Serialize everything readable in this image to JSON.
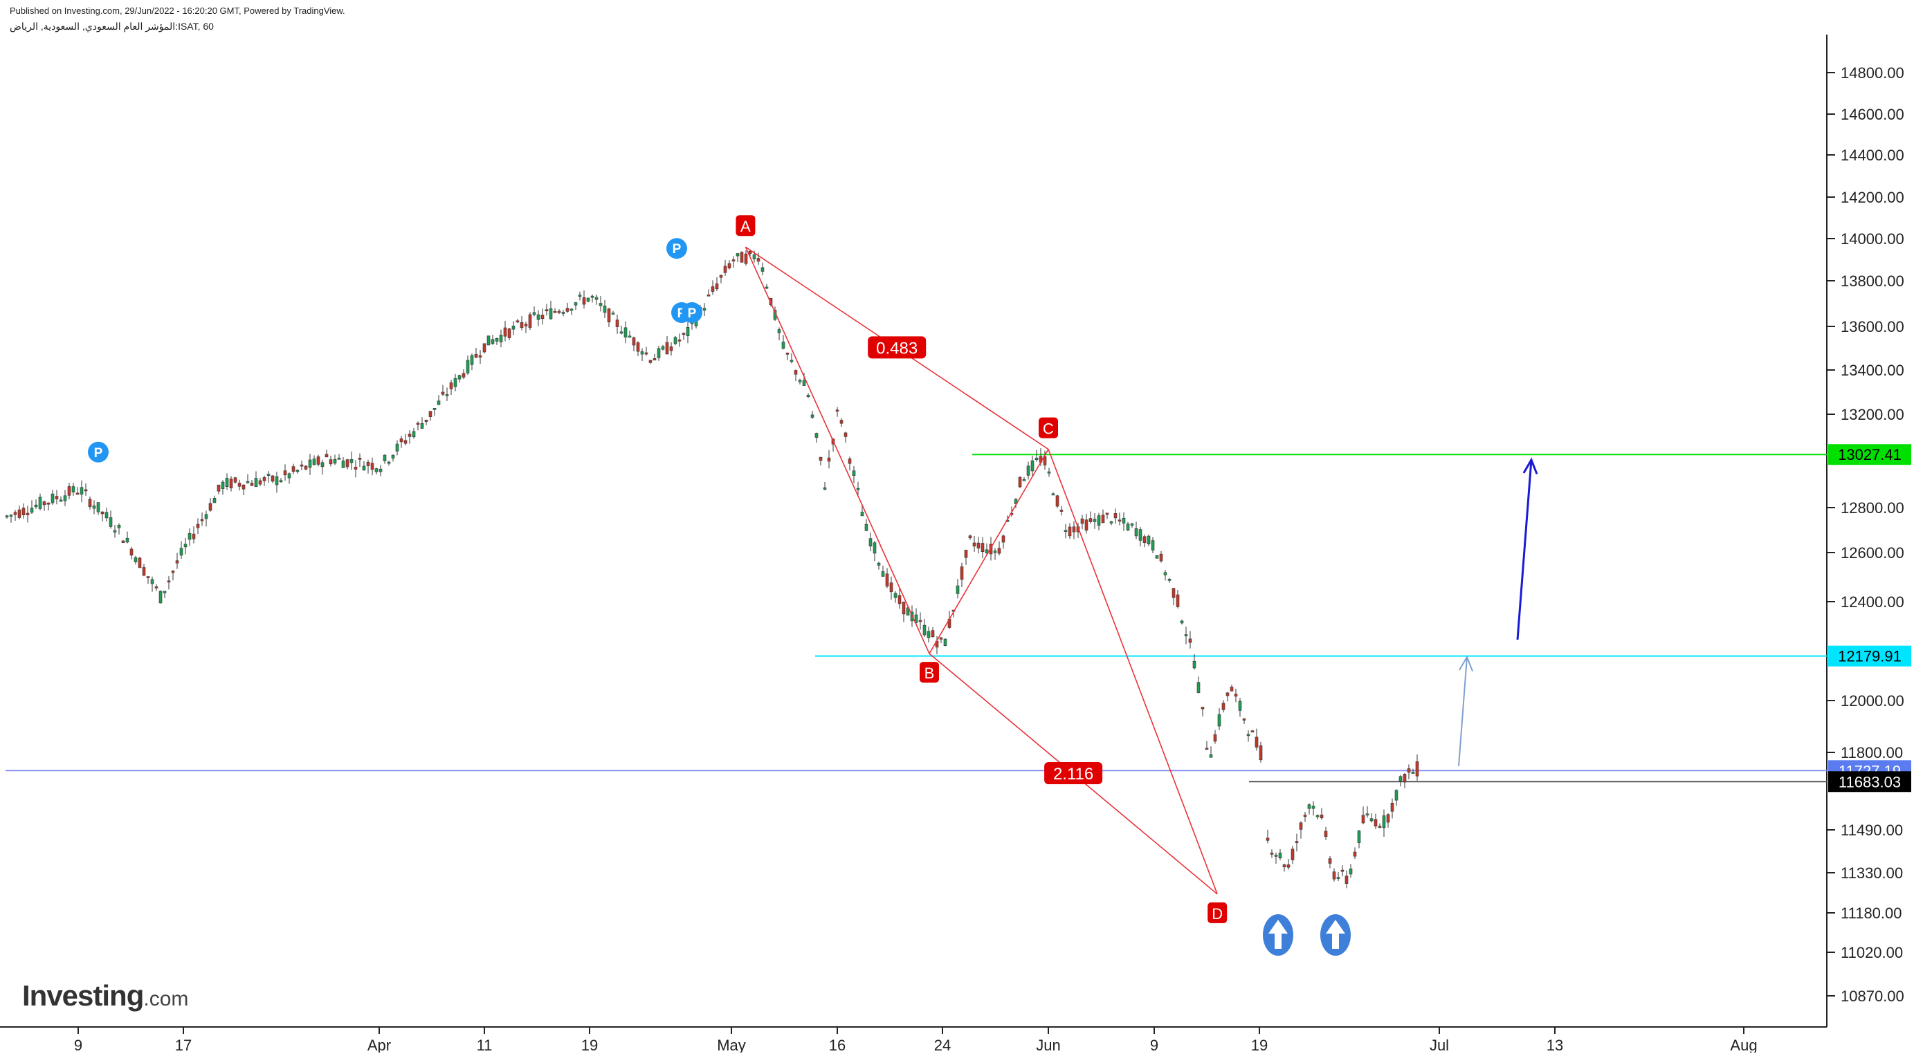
{
  "header": {
    "published": "Published on Investing.com, 29/Jun/2022 - 16:20:20 GMT, Powered by TradingView.",
    "symbol": "المؤشر العام السعودي, السعودية, الرياض:ISAT, 60"
  },
  "logo": {
    "brand": "Investing",
    "tld": ".com"
  },
  "colors": {
    "up": "#1f9d55",
    "down": "#c0392b",
    "pattern": "#e8343a",
    "pivot": "#2196f3",
    "green_line": "#00e000",
    "cyan_line": "#00e5ff",
    "blue_line": "#8a8ff5",
    "gray_line": "#555555",
    "arrow_dark": "#1a1ad6",
    "arrow_light": "#7f9fd0",
    "circle_arrow": "#3d7fd9"
  },
  "chart_data": {
    "type": "candlestick",
    "y_ticks": [
      "14800.00",
      "14600.00",
      "14400.00",
      "14200.00",
      "14000.00",
      "13800.00",
      "13600.00",
      "13400.00",
      "13200.00",
      "12800.00",
      "12600.00",
      "12400.00",
      "12000.00",
      "11800.00",
      "11490.00",
      "11330.00",
      "11180.00",
      "11020.00",
      "10870.00"
    ],
    "x_ticks": [
      "9",
      "17",
      "Apr",
      "11",
      "19",
      "May",
      "16",
      "24",
      "Jun",
      "9",
      "19",
      "Jul",
      "13",
      "Aug"
    ],
    "price_labels": [
      {
        "id": "green",
        "value": 13027.41,
        "text": "13027.41",
        "bg": "#00e000",
        "fg": "#000000"
      },
      {
        "id": "cyan",
        "value": 12179.91,
        "text": "12179.91",
        "bg": "#00e5ff",
        "fg": "#000000"
      },
      {
        "id": "blue",
        "value": 11727.19,
        "text": "11727.19",
        "bg": "#5b7cf0",
        "fg": "#ffffff"
      },
      {
        "id": "current",
        "value": 11683.03,
        "text": "11683.03",
        "bg": "#000000",
        "fg": "#ffffff"
      }
    ],
    "pattern_points": [
      {
        "label": "A",
        "x": "May 3",
        "y": 13960
      },
      {
        "label": "B",
        "x": "May 23",
        "y": 12190
      },
      {
        "label": "C",
        "x": "Jun 1",
        "y": 13050
      },
      {
        "label": "D",
        "x": "Jun 15",
        "y": 11250
      }
    ],
    "ratios": [
      {
        "text": "0.483",
        "between": [
          "A",
          "C"
        ]
      },
      {
        "text": "2.116",
        "between": [
          "B",
          "D"
        ]
      }
    ],
    "pivots": 4,
    "up_arrows": 2
  }
}
